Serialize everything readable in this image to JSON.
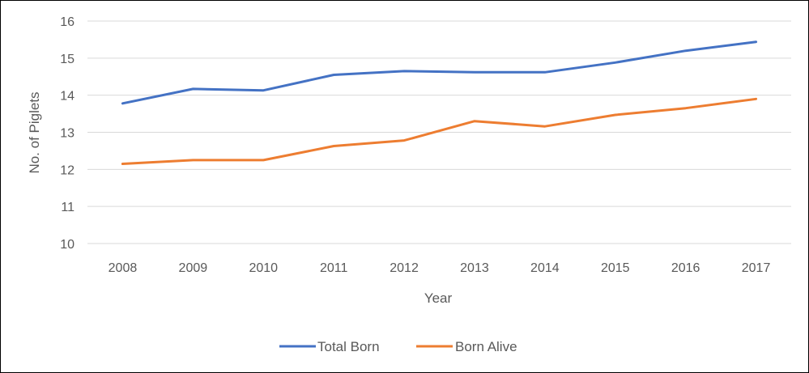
{
  "chart_data": {
    "type": "line",
    "title": "",
    "xlabel": "Year",
    "ylabel": "No. of Piglets",
    "ylim": [
      10,
      16
    ],
    "yticks": [
      "10",
      "11",
      "12",
      "13",
      "14",
      "15",
      "16"
    ],
    "categories": [
      "2008",
      "2009",
      "2010",
      "2011",
      "2012",
      "2013",
      "2014",
      "2015",
      "2016",
      "2017"
    ],
    "grid": true,
    "legend_position": "bottom",
    "series": [
      {
        "name": "Total Born",
        "color": "#4472C4",
        "values": [
          13.78,
          14.17,
          14.13,
          14.55,
          14.65,
          14.62,
          14.62,
          14.88,
          15.2,
          15.44
        ]
      },
      {
        "name": "Born Alive",
        "color": "#ED7D31",
        "values": [
          12.15,
          12.25,
          12.25,
          12.63,
          12.78,
          13.3,
          13.16,
          13.47,
          13.65,
          13.9
        ]
      }
    ]
  }
}
